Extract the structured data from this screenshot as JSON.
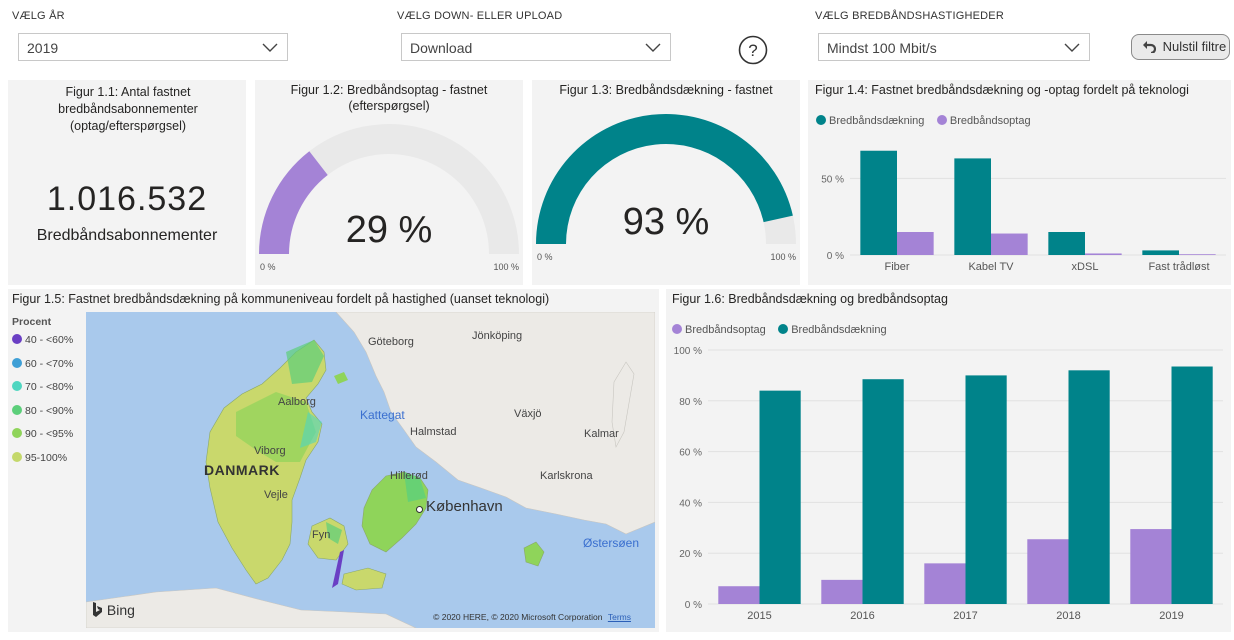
{
  "filters": {
    "year": {
      "label": "VÆLG ÅR",
      "value": "2019"
    },
    "direction": {
      "label": "VÆLG DOWN- ELLER UPLOAD",
      "value": "Download"
    },
    "speed": {
      "label": "VÆLG BREDBÅNDSHASTIGHEDER",
      "value": "Mindst 100 Mbit/s"
    },
    "help_icon": "question-circle-icon",
    "reset_label": "Nulstil filtre",
    "reset_icon": "undo-arrow-icon"
  },
  "fig1": {
    "title": "Figur 1.1: Antal fastnet bredbåndsabonnementer (optag/efterspørgsel)",
    "value": "1.016.532",
    "caption": "Bredbåndsabonnementer"
  },
  "fig2": {
    "title_line1": "Figur 1.2: Bredbåndsoptag - fastnet",
    "title_line2": "(efterspørgsel)",
    "value_text": "29 %",
    "fraction": 0.29,
    "min_label": "0 %",
    "max_label": "100 %",
    "color": "#a483d6"
  },
  "fig3": {
    "title": "Figur 1.3: Bredbåndsdækning - fastnet",
    "value_text": "93 %",
    "fraction": 0.93,
    "min_label": "0 %",
    "max_label": "100 %",
    "color": "#00838a"
  },
  "fig4": {
    "title": "Figur 1.4: Fastnet bredbåndsdækning og -optag fordelt på teknologi",
    "legend": [
      "Bredbåndsdækning",
      "Bredbåndsoptag"
    ],
    "y_ticks": [
      "50 %",
      "0 %"
    ]
  },
  "fig5": {
    "title": "Figur 1.5: Fastnet bredbåndsdækning på kommuneniveau fordelt på hastighed (uanset teknologi)",
    "legend_title": "Procent",
    "legend": [
      {
        "label": "40 - <60%",
        "color": "#6a3fc4"
      },
      {
        "label": "60 - <70%",
        "color": "#3e9fd6"
      },
      {
        "label": "70 - <80%",
        "color": "#4fd6c0"
      },
      {
        "label": "80 - <90%",
        "color": "#5ccf7a"
      },
      {
        "label": "90 - <95%",
        "color": "#8fd45a"
      },
      {
        "label": "95-100%",
        "color": "#c4d86a"
      }
    ],
    "places": {
      "goteborg": "Göteborg",
      "jonkoping": "Jönköping",
      "aalborg": "Aalborg",
      "kattegat": "Kattegat",
      "vaxjo": "Växjö",
      "halmstad": "Halmstad",
      "kalmar": "Kalmar",
      "viborg": "Viborg",
      "danmark": "DANMARK",
      "hillerod": "Hillerød",
      "karlskrona": "Karlskrona",
      "vejle": "Vejle",
      "kobenhavn": "København",
      "fyn": "Fyn",
      "ostersoen": "Østersøen"
    },
    "bing": "Bing",
    "copyright": "© 2020 HERE, © 2020 Microsoft Corporation",
    "terms": "Terms"
  },
  "fig6": {
    "title": "Figur 1.6: Bredbåndsdækning og bredbåndsoptag",
    "legend": [
      "Bredbåndsoptag",
      "Bredbåndsdækning"
    ],
    "y_ticks": [
      "100 %",
      "80 %",
      "60 %",
      "40 %",
      "20 %",
      "0 %"
    ]
  },
  "chart_data": [
    {
      "type": "bar",
      "title": "Figur 1.4: Fastnet bredbåndsdækning og -optag fordelt på teknologi",
      "categories": [
        "Fiber",
        "Kabel TV",
        "xDSL",
        "Fast trådløst"
      ],
      "series": [
        {
          "name": "Bredbåndsdækning",
          "color": "#00838a",
          "values": [
            68,
            63,
            15,
            3
          ]
        },
        {
          "name": "Bredbåndsoptag",
          "color": "#a483d6",
          "values": [
            15,
            14,
            1,
            0.5
          ]
        }
      ],
      "ylim": [
        0,
        75
      ],
      "y_ticks": [
        0,
        50
      ],
      "legend_position": "top-left"
    },
    {
      "type": "bar",
      "title": "Figur 1.6: Bredbåndsdækning og bredbåndsoptag",
      "categories": [
        "2015",
        "2016",
        "2017",
        "2018",
        "2019"
      ],
      "series": [
        {
          "name": "Bredbåndsoptag",
          "color": "#a483d6",
          "values": [
            7,
            9.5,
            16,
            25.5,
            29.5
          ]
        },
        {
          "name": "Bredbåndsdækning",
          "color": "#00838a",
          "values": [
            84,
            88.5,
            90,
            92,
            93.5
          ]
        }
      ],
      "ylim": [
        0,
        100
      ],
      "y_ticks": [
        0,
        20,
        40,
        60,
        80,
        100
      ],
      "legend_position": "top-left"
    }
  ]
}
